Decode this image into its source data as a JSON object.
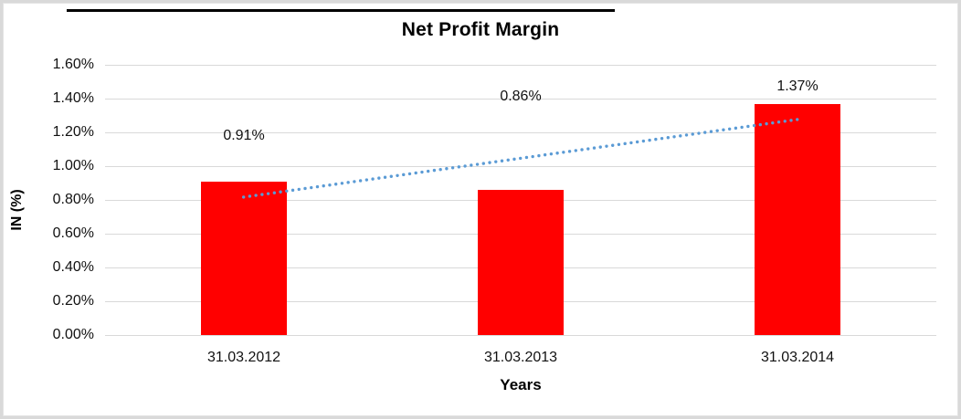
{
  "chart_data": {
    "type": "bar",
    "title": "Net Profit Margin",
    "xlabel": "Years",
    "ylabel": "IN (%)",
    "categories": [
      "31.03.2012",
      "31.03.2013",
      "31.03.2014"
    ],
    "values": [
      0.91,
      0.86,
      1.37
    ],
    "data_labels": [
      "0.91%",
      "0.86%",
      "1.37%"
    ],
    "data_label_value_positions": [
      1.18,
      1.41,
      1.47
    ],
    "y_ticks": [
      "1.60%",
      "1.40%",
      "1.20%",
      "1.00%",
      "0.80%",
      "0.60%",
      "0.40%",
      "0.20%",
      "0.00%"
    ],
    "ylim": [
      0,
      1.6
    ],
    "y_tick_step": 0.2,
    "grid": true,
    "legend": "none",
    "bar_color": "#ff0000",
    "gridline_color": "#d9d9d9",
    "trendline": {
      "type": "linear",
      "style": "dotted",
      "color": "#5b9bd5"
    }
  }
}
